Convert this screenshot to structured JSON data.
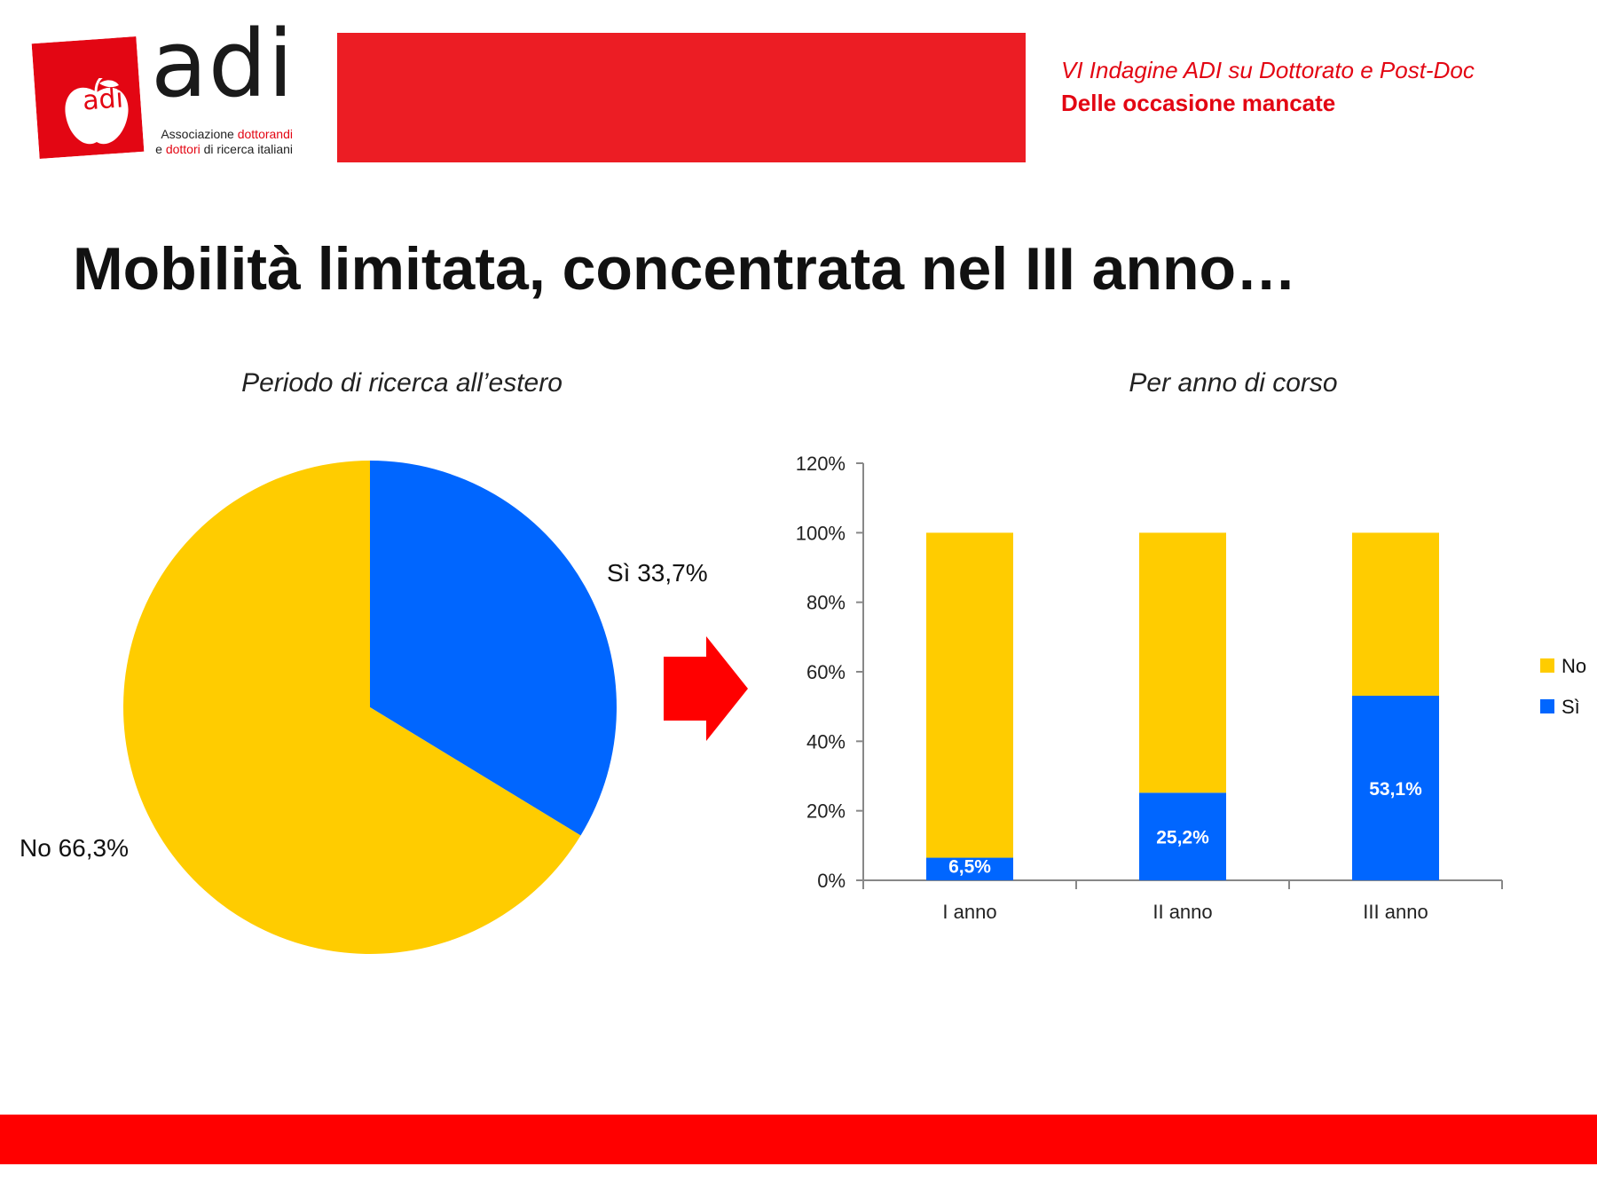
{
  "header": {
    "logo_mark": "adi",
    "logo_word": "adi",
    "logo_tagline_1a": "Associazione ",
    "logo_tagline_1b": "dottorandi",
    "logo_tagline_2a": "e ",
    "logo_tagline_2b": "dottori",
    "logo_tagline_2c": " di ricerca italiani",
    "subtitle": "VI Indagine ADI su Dottorato e Post-Doc",
    "subtitle2": "Delle occasione mancate"
  },
  "slide": {
    "title": "Mobilità limitata, concentrata nel III anno…"
  },
  "colors": {
    "yes": "#0066ff",
    "no": "#ffcc00",
    "accent": "#e30613",
    "band": "#ec1d24",
    "footer": "#ff0000"
  },
  "chart_data": [
    {
      "type": "pie",
      "title": "Periodo di ricerca all’estero",
      "slices": [
        {
          "name": "Sì",
          "value": 33.7,
          "label": "Sì 33,7%"
        },
        {
          "name": "No",
          "value": 66.3,
          "label": "No 66,3%"
        }
      ]
    },
    {
      "type": "bar",
      "stacked": true,
      "title": "Per anno di corso",
      "categories": [
        "I anno",
        "II anno",
        "III anno"
      ],
      "series": [
        {
          "name": "Sì",
          "values": [
            6.5,
            25.2,
            53.1
          ],
          "labels": [
            "6,5%",
            "25,2%",
            "53,1%"
          ]
        },
        {
          "name": "No",
          "values": [
            93.5,
            74.8,
            46.9
          ]
        }
      ],
      "ylim": [
        0,
        120
      ],
      "yticks": [
        0,
        20,
        40,
        60,
        80,
        100,
        120
      ],
      "ytick_labels": [
        "0%",
        "20%",
        "40%",
        "60%",
        "80%",
        "100%",
        "120%"
      ],
      "legend": [
        "No",
        "Sì"
      ],
      "legend_position": "right"
    }
  ]
}
